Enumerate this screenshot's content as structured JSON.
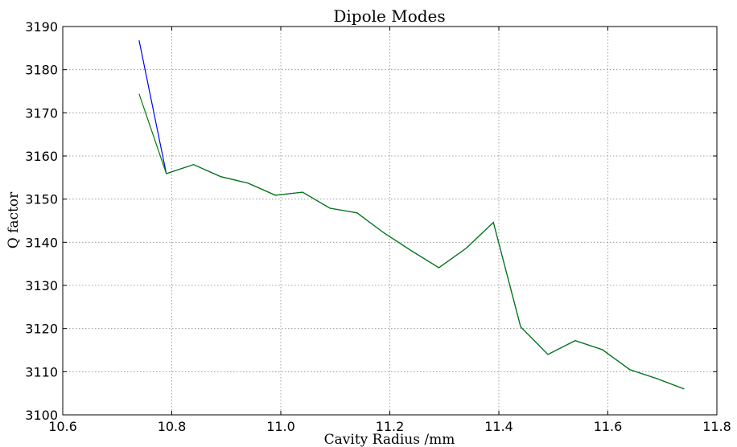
{
  "chart_data": {
    "type": "line",
    "title": "Dipole Modes",
    "x_label": "Cavity Radius /mm",
    "y_label": "Q factor",
    "x": [
      10.74,
      10.79,
      10.84,
      10.89,
      10.94,
      10.99,
      11.04,
      11.09,
      11.14,
      11.19,
      11.24,
      11.29,
      11.34,
      11.39,
      11.44,
      11.49,
      11.54,
      11.59,
      11.64,
      11.69,
      11.74
    ],
    "series": [
      {
        "color": "#0000ff",
        "values": [
          3186.8,
          3155.9,
          3158.0,
          3155.2,
          3153.7,
          3150.9,
          3151.6,
          3147.9,
          3146.8,
          3142.1,
          3138.0,
          3134.1,
          3138.6,
          3144.6,
          3120.4,
          3114.0,
          3117.2,
          3115.1,
          3110.5,
          3108.4,
          3106.0
        ]
      },
      {
        "color": "#008000",
        "values": [
          3174.4,
          3155.9,
          3158.0,
          3155.2,
          3153.7,
          3150.9,
          3151.6,
          3147.9,
          3146.8,
          3142.1,
          3138.0,
          3134.1,
          3138.6,
          3144.6,
          3120.4,
          3114.0,
          3117.2,
          3115.1,
          3110.5,
          3108.4,
          3106.0
        ]
      }
    ],
    "xlim": [
      10.6,
      11.8
    ],
    "xticks": [
      10.6,
      10.8,
      {
        "value": 11,
        "label": "11.0"
      },
      11.2,
      11.4,
      11.6,
      11.8
    ],
    "ylim": [
      3100,
      3190
    ],
    "yticks": [
      3100,
      3110,
      3120,
      3130,
      3140,
      3150,
      3160,
      3170,
      3180,
      3190
    ],
    "grid": true
  }
}
